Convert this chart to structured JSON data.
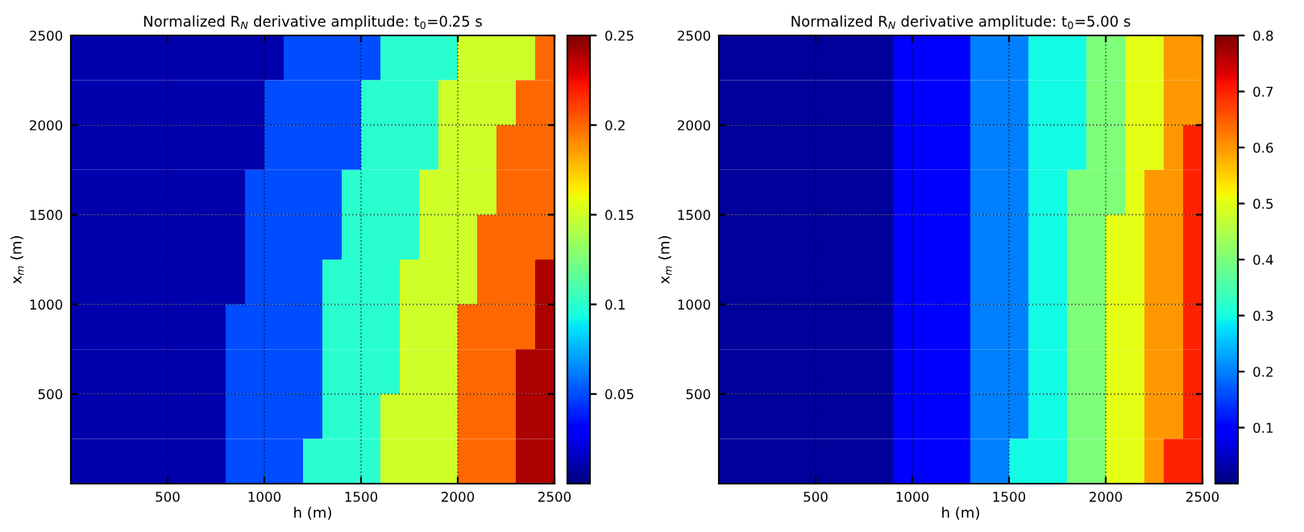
{
  "chart_data": [
    {
      "type": "heatmap",
      "title": "Normalized R$_{N}$ derivative amplitude: t$_{0}$=0.25 s",
      "xlabel": "h (m)",
      "ylabel": "x$_{m}$ (m)",
      "xlim": [
        0,
        2500
      ],
      "ylim": [
        0,
        2500
      ],
      "xticks": [
        500,
        1000,
        1500,
        2000,
        2500
      ],
      "yticks": [
        500,
        1000,
        1500,
        2000,
        2500
      ],
      "grid": true,
      "clim": [
        0,
        0.25
      ],
      "cticks": [
        0.05,
        0.1,
        0.15,
        0.2,
        0.25
      ],
      "cells": [
        [
          0.01,
          0.01,
          0.01,
          0.01,
          0.01,
          0.01,
          0.01,
          0.01,
          0.01,
          0.01,
          0.01,
          0.05,
          0.05,
          0.05,
          0.05,
          0.05,
          0.1,
          0.1,
          0.1,
          0.1,
          0.15,
          0.15,
          0.15,
          0.15,
          0.2
        ],
        [
          0.01,
          0.01,
          0.01,
          0.01,
          0.01,
          0.01,
          0.01,
          0.01,
          0.01,
          0.01,
          0.05,
          0.05,
          0.05,
          0.05,
          0.05,
          0.1,
          0.1,
          0.1,
          0.1,
          0.15,
          0.15,
          0.15,
          0.15,
          0.2,
          0.2
        ],
        [
          0.01,
          0.01,
          0.01,
          0.01,
          0.01,
          0.01,
          0.01,
          0.01,
          0.01,
          0.01,
          0.05,
          0.05,
          0.05,
          0.05,
          0.05,
          0.1,
          0.1,
          0.1,
          0.1,
          0.15,
          0.15,
          0.15,
          0.2,
          0.2,
          0.2
        ],
        [
          0.01,
          0.01,
          0.01,
          0.01,
          0.01,
          0.01,
          0.01,
          0.01,
          0.01,
          0.05,
          0.05,
          0.05,
          0.05,
          0.05,
          0.1,
          0.1,
          0.1,
          0.1,
          0.15,
          0.15,
          0.15,
          0.15,
          0.2,
          0.2,
          0.2
        ],
        [
          0.01,
          0.01,
          0.01,
          0.01,
          0.01,
          0.01,
          0.01,
          0.01,
          0.01,
          0.05,
          0.05,
          0.05,
          0.05,
          0.05,
          0.1,
          0.1,
          0.1,
          0.1,
          0.15,
          0.15,
          0.15,
          0.2,
          0.2,
          0.2,
          0.2
        ],
        [
          0.01,
          0.01,
          0.01,
          0.01,
          0.01,
          0.01,
          0.01,
          0.01,
          0.01,
          0.05,
          0.05,
          0.05,
          0.05,
          0.1,
          0.1,
          0.1,
          0.1,
          0.15,
          0.15,
          0.15,
          0.15,
          0.2,
          0.2,
          0.2,
          0.24
        ],
        [
          0.01,
          0.01,
          0.01,
          0.01,
          0.01,
          0.01,
          0.01,
          0.01,
          0.05,
          0.05,
          0.05,
          0.05,
          0.05,
          0.1,
          0.1,
          0.1,
          0.1,
          0.15,
          0.15,
          0.15,
          0.2,
          0.2,
          0.2,
          0.2,
          0.24
        ],
        [
          0.01,
          0.01,
          0.01,
          0.01,
          0.01,
          0.01,
          0.01,
          0.01,
          0.05,
          0.05,
          0.05,
          0.05,
          0.05,
          0.1,
          0.1,
          0.1,
          0.1,
          0.15,
          0.15,
          0.15,
          0.2,
          0.2,
          0.2,
          0.24,
          0.24
        ],
        [
          0.01,
          0.01,
          0.01,
          0.01,
          0.01,
          0.01,
          0.01,
          0.01,
          0.05,
          0.05,
          0.05,
          0.05,
          0.05,
          0.1,
          0.1,
          0.1,
          0.15,
          0.15,
          0.15,
          0.15,
          0.2,
          0.2,
          0.2,
          0.24,
          0.24
        ],
        [
          0.01,
          0.01,
          0.01,
          0.01,
          0.01,
          0.01,
          0.01,
          0.01,
          0.05,
          0.05,
          0.05,
          0.05,
          0.1,
          0.1,
          0.1,
          0.1,
          0.15,
          0.15,
          0.15,
          0.15,
          0.2,
          0.2,
          0.2,
          0.24,
          0.24
        ]
      ]
    },
    {
      "type": "heatmap",
      "title": "Normalized R$_{N}$ derivative amplitude: t$_{0}$=5.00 s",
      "xlabel": "h (m)",
      "ylabel": "x$_{m}$ (m)",
      "xlim": [
        0,
        2500
      ],
      "ylim": [
        0,
        2500
      ],
      "xticks": [
        500,
        1000,
        1500,
        2000,
        2500
      ],
      "yticks": [
        500,
        1000,
        1500,
        2000,
        2500
      ],
      "grid": true,
      "clim": [
        0,
        0.8
      ],
      "cticks": [
        0.1,
        0.2,
        0.3,
        0.4,
        0.5,
        0.6,
        0.7,
        0.8
      ],
      "cells": [
        [
          0.02,
          0.02,
          0.02,
          0.02,
          0.02,
          0.02,
          0.02,
          0.02,
          0.02,
          0.1,
          0.1,
          0.1,
          0.1,
          0.2,
          0.2,
          0.2,
          0.3,
          0.3,
          0.3,
          0.4,
          0.4,
          0.5,
          0.5,
          0.6,
          0.6
        ],
        [
          0.02,
          0.02,
          0.02,
          0.02,
          0.02,
          0.02,
          0.02,
          0.02,
          0.02,
          0.1,
          0.1,
          0.1,
          0.1,
          0.2,
          0.2,
          0.2,
          0.3,
          0.3,
          0.3,
          0.4,
          0.4,
          0.5,
          0.5,
          0.6,
          0.6
        ],
        [
          0.02,
          0.02,
          0.02,
          0.02,
          0.02,
          0.02,
          0.02,
          0.02,
          0.02,
          0.1,
          0.1,
          0.1,
          0.1,
          0.2,
          0.2,
          0.2,
          0.3,
          0.3,
          0.3,
          0.4,
          0.4,
          0.5,
          0.5,
          0.6,
          0.7
        ],
        [
          0.02,
          0.02,
          0.02,
          0.02,
          0.02,
          0.02,
          0.02,
          0.02,
          0.02,
          0.1,
          0.1,
          0.1,
          0.1,
          0.2,
          0.2,
          0.2,
          0.3,
          0.3,
          0.4,
          0.4,
          0.4,
          0.5,
          0.6,
          0.6,
          0.7
        ],
        [
          0.02,
          0.02,
          0.02,
          0.02,
          0.02,
          0.02,
          0.02,
          0.02,
          0.02,
          0.1,
          0.1,
          0.1,
          0.1,
          0.2,
          0.2,
          0.2,
          0.3,
          0.3,
          0.4,
          0.4,
          0.5,
          0.5,
          0.6,
          0.6,
          0.7
        ],
        [
          0.02,
          0.02,
          0.02,
          0.02,
          0.02,
          0.02,
          0.02,
          0.02,
          0.02,
          0.1,
          0.1,
          0.1,
          0.1,
          0.2,
          0.2,
          0.2,
          0.3,
          0.3,
          0.4,
          0.4,
          0.5,
          0.5,
          0.6,
          0.6,
          0.7
        ],
        [
          0.02,
          0.02,
          0.02,
          0.02,
          0.02,
          0.02,
          0.02,
          0.02,
          0.02,
          0.1,
          0.1,
          0.1,
          0.1,
          0.2,
          0.2,
          0.2,
          0.3,
          0.3,
          0.4,
          0.4,
          0.5,
          0.5,
          0.6,
          0.6,
          0.7
        ],
        [
          0.02,
          0.02,
          0.02,
          0.02,
          0.02,
          0.02,
          0.02,
          0.02,
          0.02,
          0.1,
          0.1,
          0.1,
          0.1,
          0.2,
          0.2,
          0.2,
          0.3,
          0.3,
          0.4,
          0.4,
          0.5,
          0.5,
          0.6,
          0.6,
          0.7
        ],
        [
          0.02,
          0.02,
          0.02,
          0.02,
          0.02,
          0.02,
          0.02,
          0.02,
          0.02,
          0.1,
          0.1,
          0.1,
          0.1,
          0.2,
          0.2,
          0.2,
          0.3,
          0.3,
          0.4,
          0.4,
          0.5,
          0.5,
          0.6,
          0.6,
          0.7
        ],
        [
          0.02,
          0.02,
          0.02,
          0.02,
          0.02,
          0.02,
          0.02,
          0.02,
          0.02,
          0.1,
          0.1,
          0.1,
          0.1,
          0.2,
          0.2,
          0.3,
          0.3,
          0.3,
          0.4,
          0.4,
          0.5,
          0.5,
          0.6,
          0.7,
          0.7
        ]
      ]
    }
  ]
}
